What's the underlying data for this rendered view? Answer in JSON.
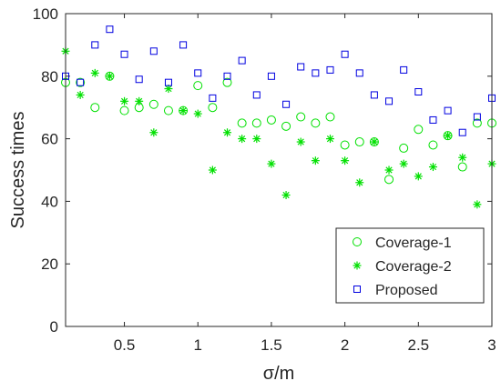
{
  "chart_data": {
    "type": "scatter",
    "xlabel": "σ/m",
    "ylabel": "Success times",
    "xlim": [
      0.1,
      3.0
    ],
    "ylim": [
      0,
      100
    ],
    "x_ticks": [
      0.5,
      1,
      1.5,
      2,
      2.5,
      3
    ],
    "x_tick_labels": [
      "0.5",
      "1",
      "1.5",
      "2",
      "2.5",
      "3"
    ],
    "y_ticks": [
      0,
      20,
      40,
      60,
      80,
      100
    ],
    "y_tick_labels": [
      "0",
      "20",
      "40",
      "60",
      "80",
      "100"
    ],
    "grid": false,
    "legend_position": "bottom-right",
    "x": [
      0.1,
      0.2,
      0.3,
      0.4,
      0.5,
      0.6,
      0.7,
      0.8,
      0.9,
      1.0,
      1.1,
      1.2,
      1.3,
      1.4,
      1.5,
      1.6,
      1.7,
      1.8,
      1.9,
      2.0,
      2.1,
      2.2,
      2.3,
      2.4,
      2.5,
      2.6,
      2.7,
      2.8,
      2.9,
      3.0
    ],
    "series": [
      {
        "name": "Coverage-1",
        "marker": "circle",
        "color": "#00e000",
        "values": [
          78,
          78,
          70,
          80,
          69,
          70,
          71,
          69,
          69,
          77,
          70,
          78,
          65,
          65,
          66,
          64,
          67,
          65,
          67,
          58,
          59,
          59,
          47,
          57,
          63,
          58,
          61,
          51,
          65,
          65
        ]
      },
      {
        "name": "Coverage-2",
        "marker": "asterisk",
        "color": "#00e000",
        "values": [
          88,
          74,
          81,
          80,
          72,
          72,
          62,
          76,
          69,
          68,
          50,
          62,
          60,
          60,
          52,
          42,
          59,
          53,
          60,
          53,
          46,
          59,
          50,
          52,
          48,
          51,
          61,
          54,
          39,
          52
        ]
      },
      {
        "name": "Proposed",
        "marker": "square",
        "color": "#0000e0",
        "values": [
          80,
          78,
          90,
          95,
          87,
          79,
          88,
          78,
          90,
          81,
          73,
          80,
          85,
          74,
          80,
          71,
          83,
          81,
          82,
          87,
          81,
          74,
          72,
          82,
          75,
          66,
          69,
          62,
          67,
          73
        ]
      }
    ]
  }
}
